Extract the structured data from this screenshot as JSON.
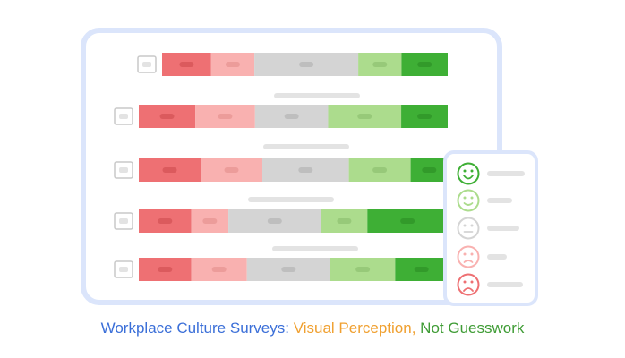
{
  "caption": {
    "part1": "Workplace Culture Surveys:",
    "part2": "Visual Perception,",
    "part3": "Not Guesswork"
  },
  "colors": {
    "caption_part1": "#3b6fd8",
    "caption_part2": "#f0a030",
    "caption_part3": "#3f9c35",
    "frame_border": "#dbe5fb",
    "strongly_negative": "#ee7073",
    "negative": "#f9b1b0",
    "neutral": "#d4d4d4",
    "positive": "#acdc8d",
    "strongly_positive": "#3eaf35",
    "placeholder": "#e3e3e3"
  },
  "scale": {
    "levels": [
      {
        "name": "strongly_positive",
        "icon": "big-smile-face-icon"
      },
      {
        "name": "positive",
        "icon": "smile-face-icon"
      },
      {
        "name": "neutral",
        "icon": "neutral-face-icon"
      },
      {
        "name": "negative",
        "icon": "frown-face-icon"
      },
      {
        "name": "strongly_negative",
        "icon": "sad-face-icon"
      }
    ]
  },
  "survey_rows": [
    {
      "shares": [
        0.17,
        0.15,
        0.36,
        0.15,
        0.16
      ]
    },
    {
      "shares": [
        0.17,
        0.18,
        0.22,
        0.22,
        0.14
      ]
    },
    {
      "shares": [
        0.2,
        0.2,
        0.28,
        0.2,
        0.12
      ]
    },
    {
      "shares": [
        0.17,
        0.12,
        0.3,
        0.15,
        0.26
      ]
    },
    {
      "shares": [
        0.17,
        0.18,
        0.27,
        0.21,
        0.17
      ]
    }
  ]
}
